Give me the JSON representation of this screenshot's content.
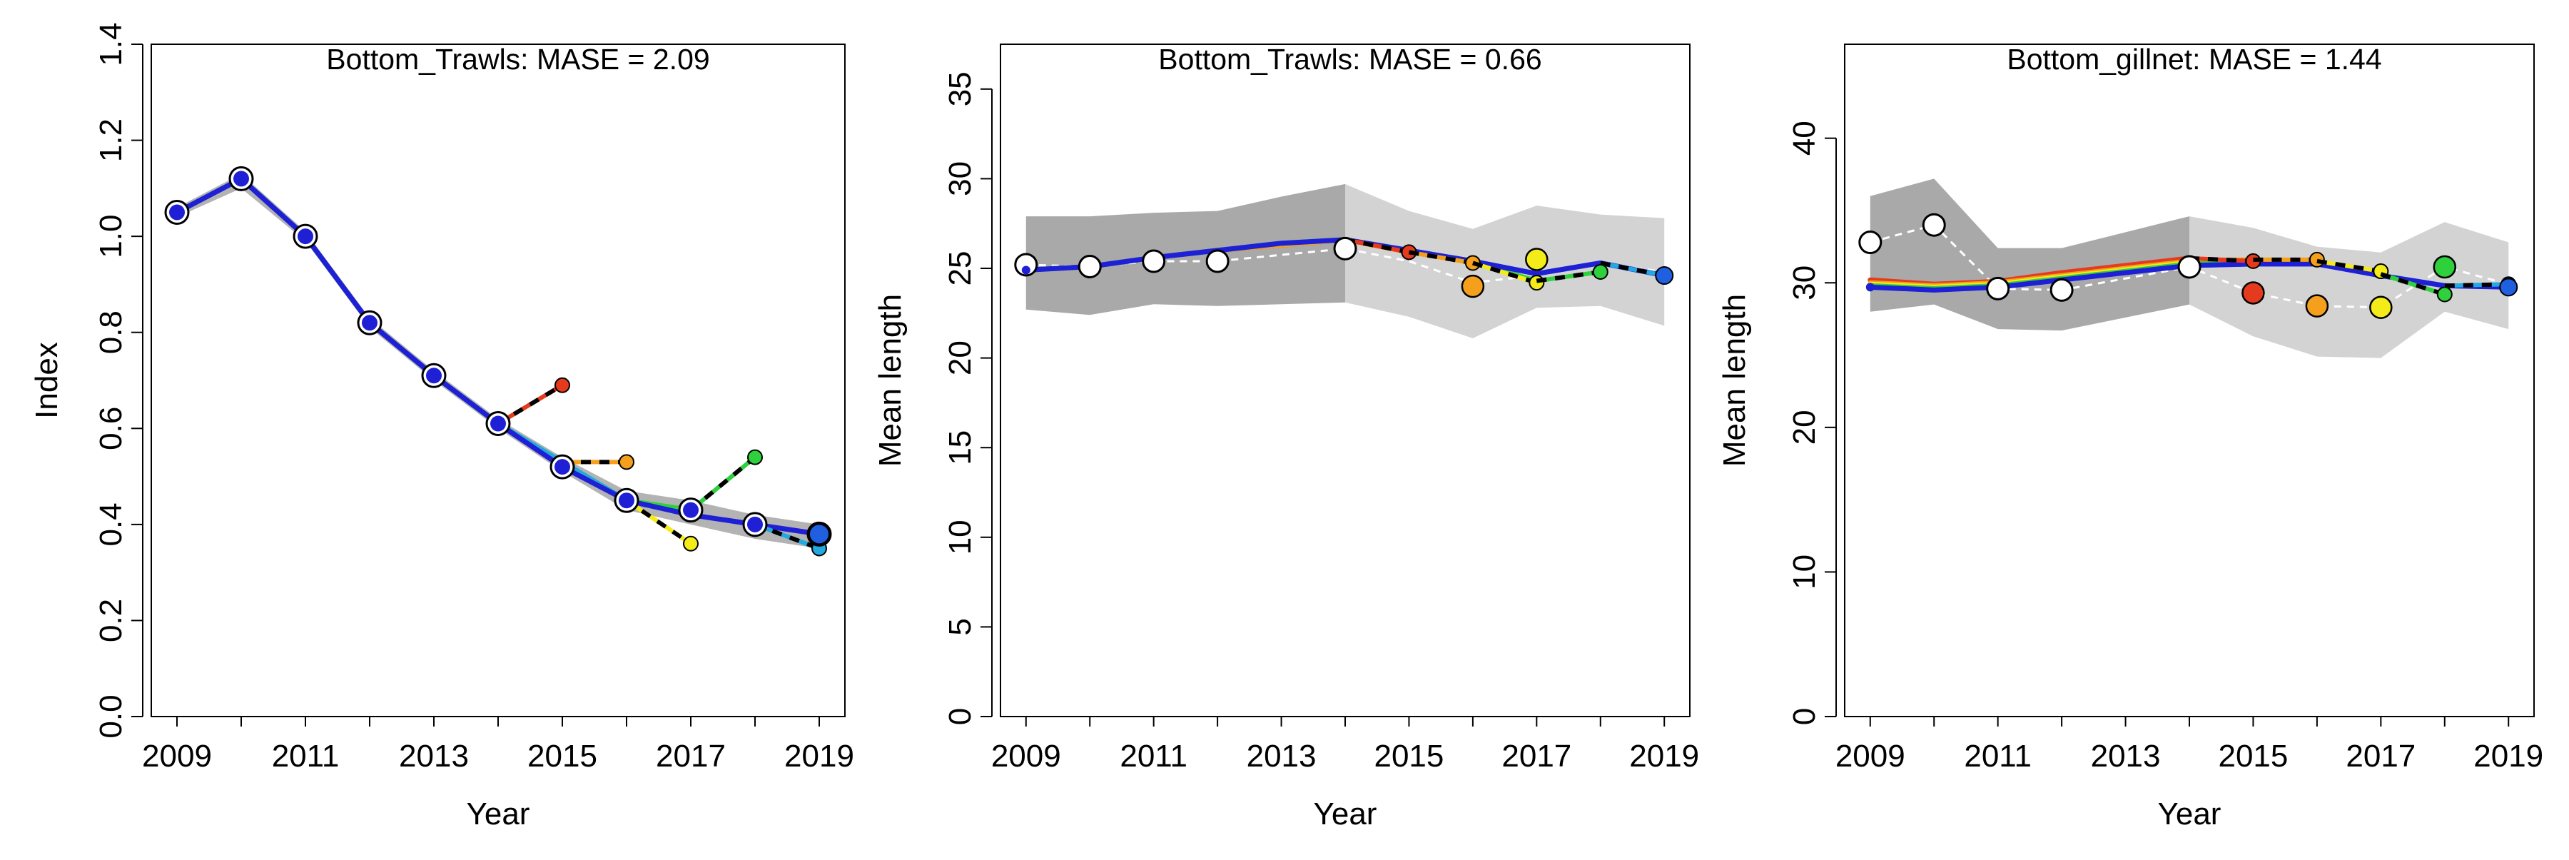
{
  "chart_data": [
    {
      "type": "line",
      "title": "Bottom_Trawls: MASE = 2.09",
      "xlabel": "Year",
      "ylabel": "Index",
      "xlim": [
        2008.6,
        2019.4
      ],
      "ylim": [
        0.0,
        1.4
      ],
      "xticks": [
        2009,
        2011,
        2013,
        2015,
        2017,
        2019
      ],
      "xtick_labels": [
        "2009",
        "2011",
        "2013",
        "2015",
        "2017",
        "2019"
      ],
      "yticks": [
        0.0,
        0.2,
        0.4,
        0.6,
        0.8,
        1.0,
        1.2,
        1.4
      ],
      "ytick_labels": [
        "0.0",
        "0.2",
        "0.4",
        "0.6",
        "0.8",
        "1.0",
        "1.2",
        "1.4"
      ],
      "band": {
        "x": [
          2009,
          2010,
          2011,
          2012,
          2013,
          2014,
          2015,
          2016,
          2017,
          2018,
          2019
        ],
        "lower": [
          1.04,
          1.1,
          0.99,
          0.81,
          0.7,
          0.6,
          0.51,
          0.43,
          0.4,
          0.37,
          0.35
        ],
        "upper": [
          1.06,
          1.13,
          1.01,
          0.83,
          0.72,
          0.62,
          0.54,
          0.47,
          0.45,
          0.42,
          0.4
        ]
      },
      "observed": {
        "x": [
          2009,
          2010,
          2011,
          2012,
          2013,
          2014,
          2015,
          2016,
          2017,
          2018,
          2019
        ],
        "y": [
          1.05,
          1.12,
          1.0,
          0.82,
          0.71,
          0.61,
          0.52,
          0.45,
          0.43,
          0.4,
          0.38
        ],
        "connected": false
      },
      "series": [
        {
          "color": "#e53a1e",
          "fit": {
            "x": [
              2009,
              2010,
              2011,
              2012,
              2013,
              2014
            ],
            "y": [
              1.05,
              1.12,
              1.0,
              0.82,
              0.71,
              0.61
            ]
          },
          "pred": {
            "x": [
              2014,
              2015
            ],
            "y": [
              0.61,
              0.69
            ]
          }
        },
        {
          "color": "#f4a01d",
          "fit": {
            "x": [
              2009,
              2010,
              2011,
              2012,
              2013,
              2014,
              2015
            ],
            "y": [
              1.05,
              1.12,
              1.0,
              0.82,
              0.71,
              0.61,
              0.53
            ]
          },
          "pred": {
            "x": [
              2015,
              2016
            ],
            "y": [
              0.53,
              0.53
            ]
          }
        },
        {
          "color": "#f3ec18",
          "fit": {
            "x": [
              2009,
              2010,
              2011,
              2012,
              2013,
              2014,
              2015,
              2016
            ],
            "y": [
              1.05,
              1.12,
              1.0,
              0.82,
              0.71,
              0.61,
              0.53,
              0.45
            ]
          },
          "pred": {
            "x": [
              2016,
              2017
            ],
            "y": [
              0.45,
              0.36
            ]
          }
        },
        {
          "color": "#2ed13b",
          "fit": {
            "x": [
              2009,
              2010,
              2011,
              2012,
              2013,
              2014,
              2015,
              2016,
              2017
            ],
            "y": [
              1.05,
              1.12,
              1.0,
              0.82,
              0.71,
              0.61,
              0.53,
              0.45,
              0.43
            ]
          },
          "pred": {
            "x": [
              2017,
              2018
            ],
            "y": [
              0.43,
              0.54
            ]
          }
        },
        {
          "color": "#23a8e0",
          "fit": {
            "x": [
              2009,
              2010,
              2011,
              2012,
              2013,
              2014,
              2015,
              2016,
              2017,
              2018
            ],
            "y": [
              1.05,
              1.12,
              1.0,
              0.82,
              0.71,
              0.61,
              0.53,
              0.45,
              0.42,
              0.4
            ]
          },
          "pred": {
            "x": [
              2018,
              2019
            ],
            "y": [
              0.4,
              0.35
            ]
          }
        },
        {
          "color": "#1f1fd6",
          "fit": {
            "x": [
              2009,
              2010,
              2011,
              2012,
              2013,
              2014,
              2015,
              2016,
              2017,
              2018,
              2019
            ],
            "y": [
              1.05,
              1.12,
              1.0,
              0.82,
              0.71,
              0.61,
              0.52,
              0.45,
              0.42,
              0.4,
              0.38
            ]
          },
          "pred": null
        }
      ]
    },
    {
      "type": "line",
      "title": "Bottom_Trawls: MASE = 0.66",
      "xlabel": "Year",
      "ylabel": "Mean length",
      "xlim": [
        2008.6,
        2019.4
      ],
      "ylim": [
        0,
        37.5
      ],
      "xticks": [
        2009,
        2011,
        2013,
        2015,
        2017,
        2019
      ],
      "xtick_labels": [
        "2009",
        "2011",
        "2013",
        "2015",
        "2017",
        "2019"
      ],
      "yticks": [
        0,
        5,
        10,
        15,
        20,
        25,
        30,
        35
      ],
      "ytick_labels": [
        "0",
        "5",
        "10",
        "15",
        "20",
        "25",
        "30",
        "35"
      ],
      "band_dark": {
        "x": [
          2009,
          2010,
          2011,
          2012,
          2013,
          2014
        ],
        "lower": [
          22.7,
          22.4,
          23.0,
          22.9,
          23.0,
          23.1
        ],
        "upper": [
          27.9,
          27.9,
          28.1,
          28.2,
          29.0,
          29.7
        ]
      },
      "band_light": {
        "x": [
          2014,
          2015,
          2016,
          2017,
          2018,
          2019
        ],
        "lower": [
          23.1,
          22.3,
          21.1,
          22.8,
          22.9,
          21.8
        ],
        "upper": [
          29.7,
          28.2,
          27.2,
          28.5,
          28.0,
          27.8
        ]
      },
      "observed": {
        "x": [
          2009,
          2010,
          2011,
          2012,
          2013,
          2014,
          2015,
          2016,
          2017,
          2018,
          2019
        ],
        "y": [
          25.2,
          25.1,
          25.4,
          25.4,
          null,
          26.1,
          25.4,
          24.2,
          24.6,
          25.3,
          24.8
        ],
        "connected": true,
        "open_markers_until": 2014
      },
      "series": [
        {
          "color": "#e53a1e",
          "fit": {
            "x": [
              2009,
              2010,
              2011,
              2012,
              2013,
              2014
            ],
            "y": [
              24.9,
              25.1,
              25.6,
              26.0,
              26.3,
              26.6
            ]
          },
          "pred": {
            "x": [
              2014,
              2015
            ],
            "y": [
              26.6,
              25.9
            ]
          }
        },
        {
          "color": "#f4a01d",
          "fit": {
            "x": [
              2009,
              2010,
              2011,
              2012,
              2013,
              2014,
              2015
            ],
            "y": [
              24.9,
              25.1,
              25.6,
              26.0,
              26.3,
              26.6,
              25.9
            ]
          },
          "pred": {
            "x": [
              2015,
              2016
            ],
            "y": [
              25.9,
              25.3
            ]
          },
          "point": {
            "x": 2016,
            "y": 24.0,
            "size": "large"
          }
        },
        {
          "color": "#f3ec18",
          "fit": {
            "x": [
              2009,
              2010,
              2011,
              2012,
              2013,
              2014,
              2015,
              2016
            ],
            "y": [
              24.9,
              25.1,
              25.6,
              26.0,
              26.4,
              26.6,
              26.0,
              25.3
            ]
          },
          "pred": {
            "x": [
              2016,
              2017
            ],
            "y": [
              25.3,
              24.2
            ]
          },
          "point": {
            "x": 2017,
            "y": 25.5,
            "size": "large"
          }
        },
        {
          "color": "#2ed13b",
          "fit": {
            "x": [
              2009,
              2010,
              2011,
              2012,
              2013,
              2014,
              2015,
              2016,
              2017
            ],
            "y": [
              24.9,
              25.1,
              25.6,
              26.0,
              26.4,
              26.6,
              26.0,
              25.3,
              24.3
            ]
          },
          "pred": {
            "x": [
              2017,
              2018
            ],
            "y": [
              24.3,
              24.8
            ]
          }
        },
        {
          "color": "#23a8e0",
          "fit": {
            "x": [
              2009,
              2010,
              2011,
              2012,
              2013,
              2014,
              2015,
              2016,
              2017,
              2018
            ],
            "y": [
              24.9,
              25.1,
              25.6,
              26.0,
              26.4,
              26.6,
              26.0,
              25.4,
              24.7,
              25.3
            ]
          },
          "pred": {
            "x": [
              2018,
              2019
            ],
            "y": [
              25.3,
              24.6
            ]
          }
        },
        {
          "color": "#1f1fd6",
          "fit": {
            "x": [
              2009,
              2010,
              2011,
              2012,
              2013,
              2014,
              2015,
              2016,
              2017,
              2018,
              2019
            ],
            "y": [
              24.9,
              25.1,
              25.6,
              26.0,
              26.4,
              26.6,
              26.0,
              25.4,
              24.7,
              25.3,
              24.6
            ]
          },
          "pred": null
        }
      ]
    },
    {
      "type": "line",
      "title": "Bottom_gillnet: MASE = 1.44",
      "xlabel": "Year",
      "ylabel": "Mean length",
      "xlim": [
        2008.6,
        2019.4
      ],
      "ylim": [
        0,
        46.5
      ],
      "xticks": [
        2009,
        2011,
        2013,
        2015,
        2017,
        2019
      ],
      "xtick_labels": [
        "2009",
        "2011",
        "2013",
        "2015",
        "2017",
        "2019"
      ],
      "yticks": [
        0,
        10,
        20,
        30,
        40
      ],
      "ytick_labels": [
        "0",
        "10",
        "20",
        "30",
        "40"
      ],
      "band_dark": {
        "x": [
          2009,
          2010,
          2011,
          2012,
          2013,
          2014
        ],
        "lower": [
          28.0,
          28.5,
          26.8,
          26.7,
          27.6,
          28.5
        ],
        "upper": [
          36.0,
          37.2,
          32.4,
          32.4,
          33.5,
          34.6
        ]
      },
      "band_light": {
        "x": [
          2014,
          2015,
          2016,
          2017,
          2018,
          2019
        ],
        "lower": [
          28.5,
          26.3,
          24.9,
          24.8,
          28.0,
          26.8
        ],
        "upper": [
          34.6,
          33.8,
          32.5,
          32.1,
          34.2,
          32.8
        ]
      },
      "observed": {
        "x": [
          2009,
          2010,
          2011,
          2012,
          2013,
          2014,
          2015,
          2016,
          2017,
          2018,
          2019
        ],
        "y": [
          32.8,
          34.0,
          29.6,
          29.5,
          null,
          31.1,
          29.3,
          28.4,
          28.3,
          31.1,
          29.9
        ],
        "connected": true,
        "open_markers_until": 2014
      },
      "series": [
        {
          "color": "#e53a1e",
          "fit": {
            "x": [
              2009,
              2010,
              2011,
              2012,
              2013,
              2014
            ],
            "y": [
              30.2,
              29.9,
              30.1,
              30.7,
              31.2,
              31.7
            ]
          },
          "pred": {
            "x": [
              2014,
              2015
            ],
            "y": [
              31.7,
              31.5
            ]
          },
          "point": {
            "x": 2015,
            "y": 29.3,
            "size": "large"
          }
        },
        {
          "color": "#f4a01d",
          "fit": {
            "x": [
              2009,
              2010,
              2011,
              2012,
              2013,
              2014,
              2015
            ],
            "y": [
              30.0,
              29.8,
              30.0,
              30.5,
              31.0,
              31.5,
              31.6
            ]
          },
          "pred": {
            "x": [
              2015,
              2016
            ],
            "y": [
              31.6,
              31.6
            ]
          },
          "point": {
            "x": 2016,
            "y": 28.4,
            "size": "large"
          }
        },
        {
          "color": "#f3ec18",
          "fit": {
            "x": [
              2009,
              2010,
              2011,
              2012,
              2013,
              2014,
              2015,
              2016
            ],
            "y": [
              29.9,
              29.7,
              29.9,
              30.4,
              30.9,
              31.4,
              31.5,
              31.5
            ]
          },
          "pred": {
            "x": [
              2016,
              2017
            ],
            "y": [
              31.5,
              30.8
            ]
          },
          "point": {
            "x": 2017,
            "y": 28.3,
            "size": "large"
          }
        },
        {
          "color": "#2ed13b",
          "fit": {
            "x": [
              2009,
              2010,
              2011,
              2012,
              2013,
              2014,
              2015,
              2016,
              2017
            ],
            "y": [
              29.8,
              29.6,
              29.8,
              30.3,
              30.8,
              31.3,
              31.4,
              31.4,
              30.6
            ]
          },
          "pred": {
            "x": [
              2017,
              2018
            ],
            "y": [
              30.6,
              29.2
            ]
          },
          "point": {
            "x": 2018,
            "y": 31.1,
            "size": "large"
          }
        },
        {
          "color": "#23a8e0",
          "fit": {
            "x": [
              2009,
              2010,
              2011,
              2012,
              2013,
              2014,
              2015,
              2016,
              2017,
              2018
            ],
            "y": [
              29.7,
              29.5,
              29.7,
              30.2,
              30.7,
              31.2,
              31.3,
              31.3,
              30.5,
              29.8
            ]
          },
          "pred": {
            "x": [
              2018,
              2019
            ],
            "y": [
              29.8,
              29.9
            ]
          }
        },
        {
          "color": "#1f1fd6",
          "fit": {
            "x": [
              2009,
              2010,
              2011,
              2012,
              2013,
              2014,
              2015,
              2016,
              2017,
              2018,
              2019
            ],
            "y": [
              29.7,
              29.5,
              29.7,
              30.2,
              30.7,
              31.2,
              31.3,
              31.3,
              30.5,
              29.8,
              29.7
            ]
          },
          "pred": null
        }
      ]
    }
  ]
}
